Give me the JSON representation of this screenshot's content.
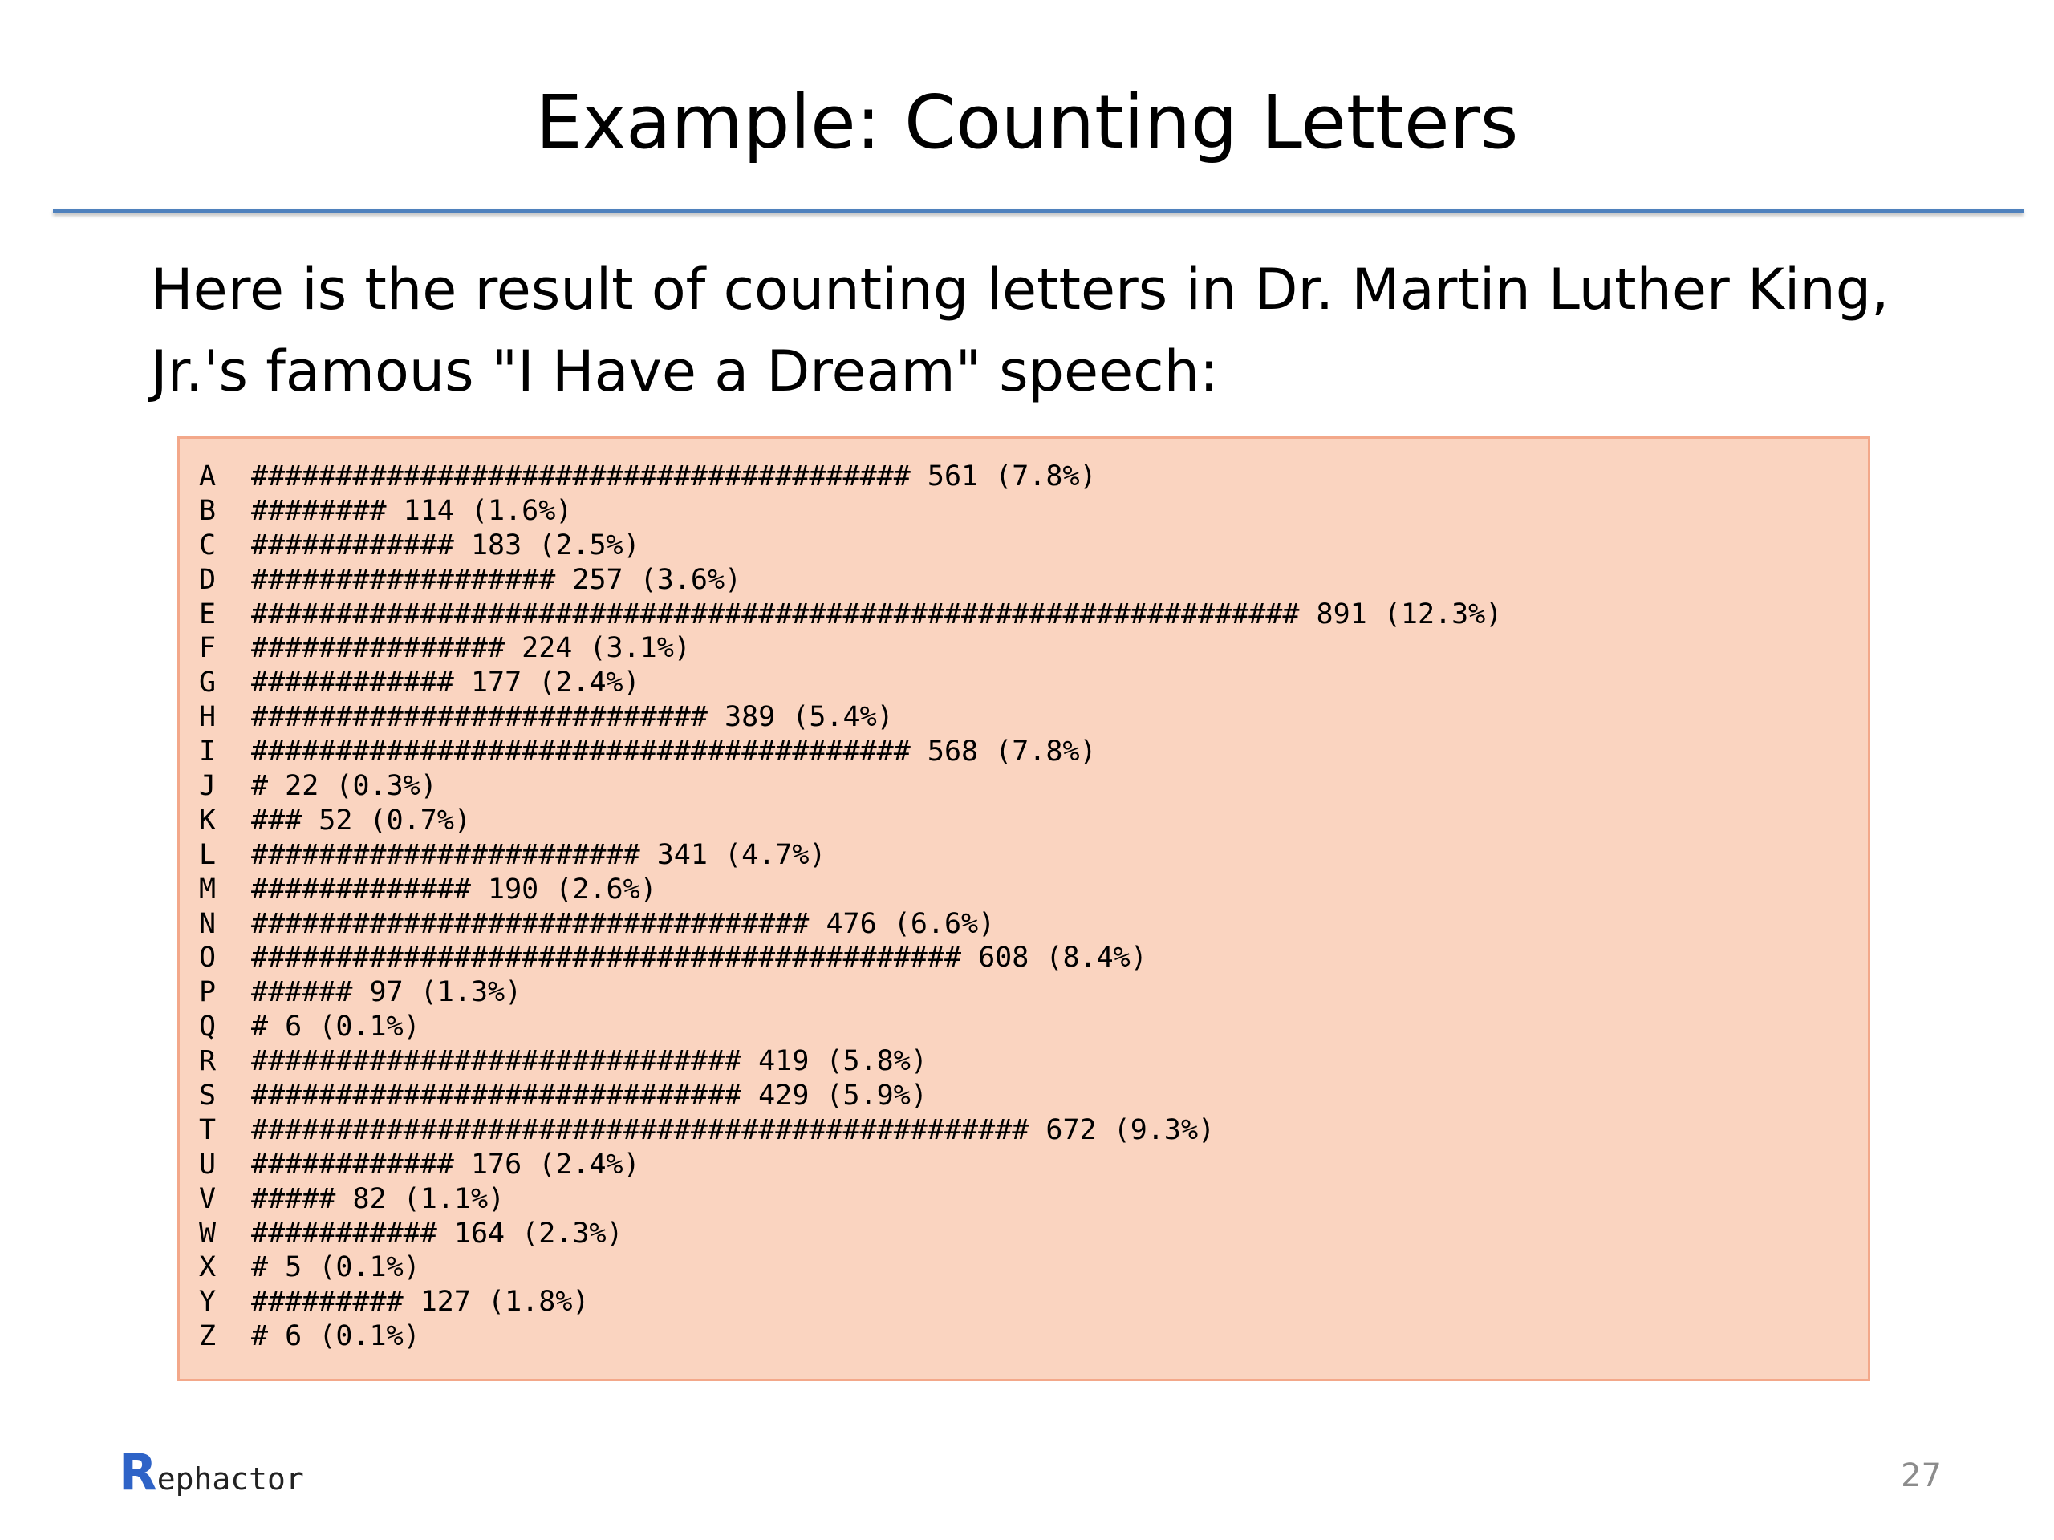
{
  "slide": {
    "title": "Example: Counting Letters",
    "intro": "Here is the result of counting letters in Dr. Martin Luther King, Jr.'s famous \"I Have a Dream\" speech:",
    "logo_initial": "R",
    "logo_rest": "ephactor",
    "page_number": "27",
    "colors": {
      "title_rule": "#4f81bd",
      "code_box_background": "#fad4c0",
      "code_box_border": "#f3a88a",
      "logo_initial": "#2e63c7",
      "page_number": "#8c8c8c"
    }
  },
  "histogram": [
    {
      "letter": "A",
      "bar": "#######################################",
      "count": 561,
      "percent": "(7.8%)"
    },
    {
      "letter": "B",
      "bar": "########",
      "count": 114,
      "percent": "(1.6%)"
    },
    {
      "letter": "C",
      "bar": "############",
      "count": 183,
      "percent": "(2.5%)"
    },
    {
      "letter": "D",
      "bar": "##################",
      "count": 257,
      "percent": "(3.6%)"
    },
    {
      "letter": "E",
      "bar": "##############################################################",
      "count": 891,
      "percent": "(12.3%)"
    },
    {
      "letter": "F",
      "bar": "###############",
      "count": 224,
      "percent": "(3.1%)"
    },
    {
      "letter": "G",
      "bar": "############",
      "count": 177,
      "percent": "(2.4%)"
    },
    {
      "letter": "H",
      "bar": "###########################",
      "count": 389,
      "percent": "(5.4%)"
    },
    {
      "letter": "I",
      "bar": "#######################################",
      "count": 568,
      "percent": "(7.8%)"
    },
    {
      "letter": "J",
      "bar": "#",
      "count": 22,
      "percent": "(0.3%)"
    },
    {
      "letter": "K",
      "bar": "###",
      "count": 52,
      "percent": "(0.7%)"
    },
    {
      "letter": "L",
      "bar": "#######################",
      "count": 341,
      "percent": "(4.7%)"
    },
    {
      "letter": "M",
      "bar": "#############",
      "count": 190,
      "percent": "(2.6%)"
    },
    {
      "letter": "N",
      "bar": "#################################",
      "count": 476,
      "percent": "(6.6%)"
    },
    {
      "letter": "O",
      "bar": "##########################################",
      "count": 608,
      "percent": "(8.4%)"
    },
    {
      "letter": "P",
      "bar": "######",
      "count": 97,
      "percent": "(1.3%)"
    },
    {
      "letter": "Q",
      "bar": "#",
      "count": 6,
      "percent": "(0.1%)"
    },
    {
      "letter": "R",
      "bar": "#############################",
      "count": 419,
      "percent": "(5.8%)"
    },
    {
      "letter": "S",
      "bar": "#############################",
      "count": 429,
      "percent": "(5.9%)"
    },
    {
      "letter": "T",
      "bar": "##############################################",
      "count": 672,
      "percent": "(9.3%)"
    },
    {
      "letter": "U",
      "bar": "############",
      "count": 176,
      "percent": "(2.4%)"
    },
    {
      "letter": "V",
      "bar": "#####",
      "count": 82,
      "percent": "(1.1%)"
    },
    {
      "letter": "W",
      "bar": "###########",
      "count": 164,
      "percent": "(2.3%)"
    },
    {
      "letter": "X",
      "bar": "#",
      "count": 5,
      "percent": "(0.1%)"
    },
    {
      "letter": "Y",
      "bar": "#########",
      "count": 127,
      "percent": "(1.8%)"
    },
    {
      "letter": "Z",
      "bar": "#",
      "count": 6,
      "percent": "(0.1%)"
    }
  ]
}
